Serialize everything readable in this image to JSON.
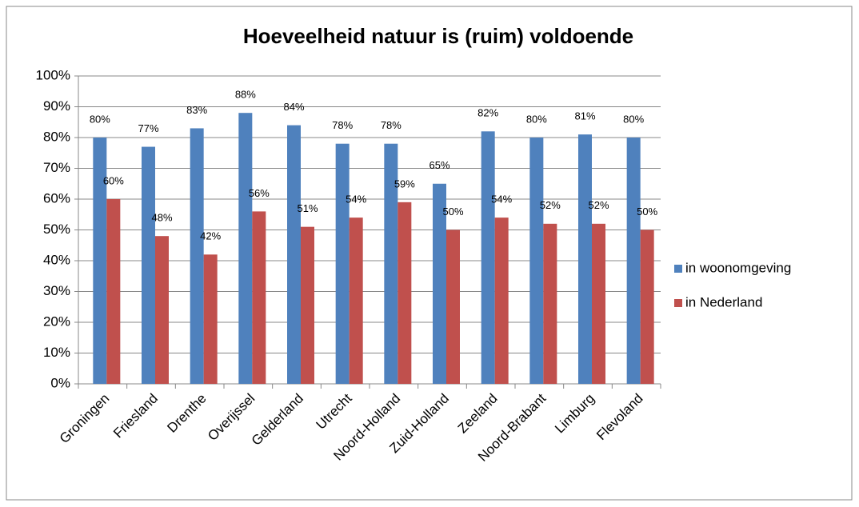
{
  "chart_data": {
    "type": "bar",
    "title": "Hoeveelheid natuur is (ruim) voldoende",
    "categories": [
      "Groningen",
      "Friesland",
      "Drenthe",
      "Overijssel",
      "Gelderland",
      "Utrecht",
      "Noord-Holland",
      "Zuid-Holland",
      "Zeeland",
      "Noord-Brabant",
      "Limburg",
      "Flevoland"
    ],
    "series": [
      {
        "name": "in woonomgeving",
        "color": "#4f81bd",
        "values": [
          80,
          77,
          83,
          88,
          84,
          78,
          78,
          65,
          82,
          80,
          81,
          80
        ],
        "value_labels": [
          "80%",
          "77%",
          "83%",
          "88%",
          "84%",
          "78%",
          "78%",
          "65%",
          "82%",
          "80%",
          "81%",
          "80%"
        ]
      },
      {
        "name": "in Nederland",
        "color": "#c0504d",
        "values": [
          60,
          48,
          42,
          56,
          51,
          54,
          59,
          50,
          54,
          52,
          52,
          50
        ],
        "value_labels": [
          "60%",
          "48%",
          "42%",
          "56%",
          "51%",
          "54%",
          "59%",
          "50%",
          "54%",
          "52%",
          "52%",
          "50%"
        ]
      }
    ],
    "ylim": [
      0,
      100
    ],
    "yticks": [
      {
        "value": 0,
        "label": "0%"
      },
      {
        "value": 10,
        "label": "10%"
      },
      {
        "value": 20,
        "label": "20%"
      },
      {
        "value": 30,
        "label": "30%"
      },
      {
        "value": 40,
        "label": "40%"
      },
      {
        "value": 50,
        "label": "50%"
      },
      {
        "value": 60,
        "label": "60%"
      },
      {
        "value": 70,
        "label": "70%"
      },
      {
        "value": 80,
        "label": "80%"
      },
      {
        "value": 90,
        "label": "90%"
      },
      {
        "value": 100,
        "label": "100%"
      }
    ],
    "grid": true,
    "legend": "right"
  }
}
